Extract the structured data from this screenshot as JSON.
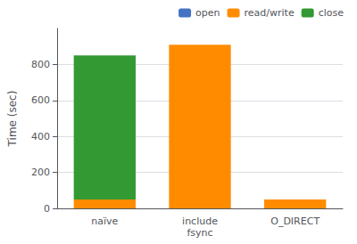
{
  "chart_data": {
    "type": "bar",
    "categories": [
      "naïve",
      "include\nfsync",
      "O_DIRECT"
    ],
    "series": [
      {
        "name": "open",
        "color": "#4472c4",
        "values": [
          0,
          0,
          0
        ]
      },
      {
        "name": "read/write",
        "color": "#ff8c00",
        "values": [
          50,
          910,
          50
        ]
      },
      {
        "name": "close",
        "color": "#339933",
        "values": [
          800,
          0,
          0
        ]
      }
    ],
    "stacked": true,
    "ylabel": "Time (sec)",
    "ylim": [
      0,
      1000
    ],
    "yticks": [
      0,
      200,
      400,
      600,
      800
    ],
    "grid": true,
    "legend": "upper right"
  }
}
